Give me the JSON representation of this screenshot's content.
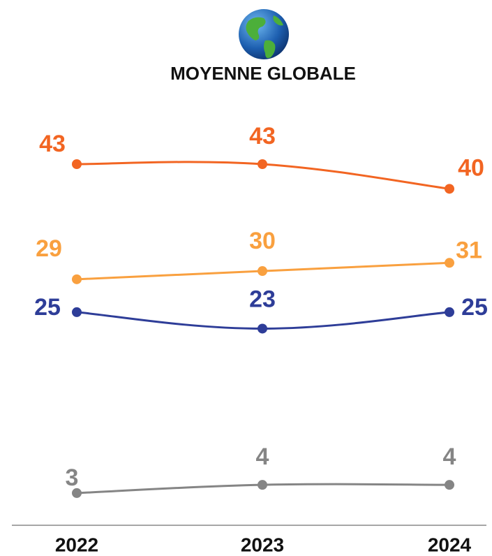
{
  "chart_data": {
    "type": "line",
    "title": "MOYENNE GLOBALE",
    "categories": [
      "2022",
      "2023",
      "2024"
    ],
    "series": [
      {
        "color": "#f26522",
        "values": [
          43,
          43,
          40
        ]
      },
      {
        "color": "#f9a03f",
        "values": [
          29,
          30,
          31
        ]
      },
      {
        "color": "#2e3d98",
        "values": [
          25,
          23,
          25
        ]
      },
      {
        "color": "#858585",
        "values": [
          3,
          4,
          4
        ]
      }
    ],
    "ylim": [
      -1,
      50
    ]
  }
}
